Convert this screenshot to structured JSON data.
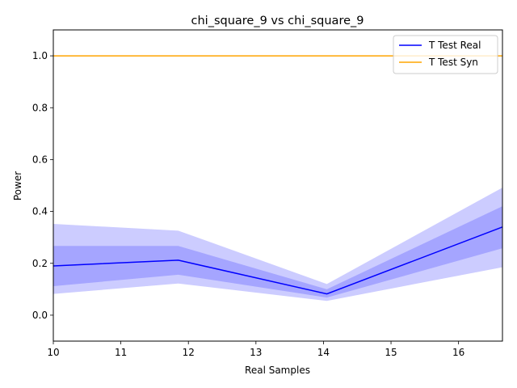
{
  "chart_data": {
    "type": "line",
    "title": "chi_square_9 vs chi_square_9",
    "xlabel": "Real Samples",
    "ylabel": "Power",
    "xlim": [
      10,
      16.65
    ],
    "ylim": [
      -0.1,
      1.1
    ],
    "x_ticks": [
      10,
      11,
      12,
      13,
      14,
      15,
      16
    ],
    "y_ticks": [
      0.0,
      0.2,
      0.4,
      0.6,
      0.8,
      1.0
    ],
    "x_tick_labels": [
      "10",
      "11",
      "12",
      "13",
      "14",
      "15",
      "16"
    ],
    "y_tick_labels": [
      "0.0",
      "0.2",
      "0.4",
      "0.6",
      "0.8",
      "1.0"
    ],
    "grid": false,
    "legend_position": "top-right",
    "x": [
      10,
      11.85,
      14.05,
      16.65
    ],
    "series": [
      {
        "name": "T Test Real",
        "color": "#0000ff",
        "values": [
          0.19,
          0.212,
          0.082,
          0.34
        ],
        "band_outer": {
          "color": "#ccccff",
          "lower": [
            0.082,
            0.122,
            0.055,
            0.185
          ],
          "upper": [
            0.352,
            0.326,
            0.12,
            0.492
          ]
        },
        "band_inner": {
          "color": "#a5a5ff",
          "lower": [
            0.112,
            0.156,
            0.068,
            0.258
          ],
          "upper": [
            0.267,
            0.267,
            0.1,
            0.42
          ]
        }
      },
      {
        "name": "T Test Syn",
        "color": "#ffa500",
        "values": [
          1.0,
          1.0,
          1.0,
          1.0
        ]
      }
    ]
  }
}
